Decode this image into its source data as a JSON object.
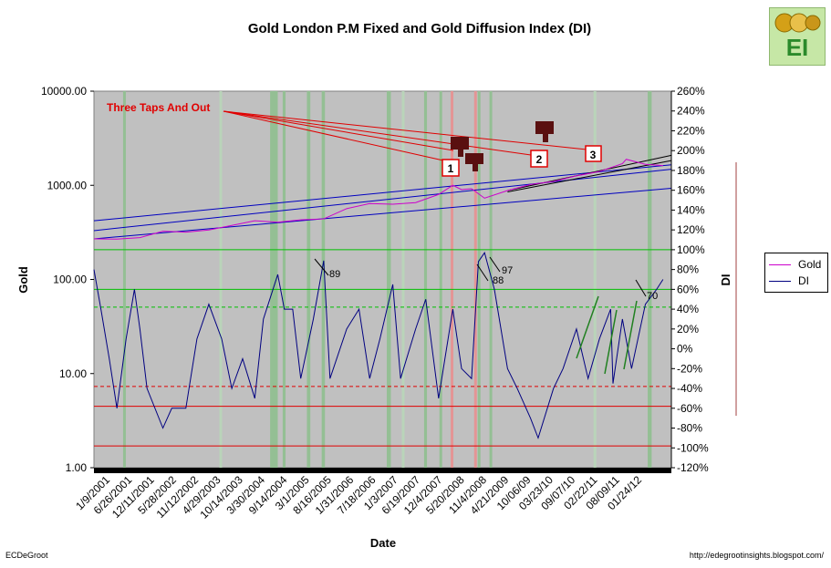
{
  "chart_data": {
    "type": "line",
    "title": "Gold London P.M Fixed and Gold Diffusion Index (DI)",
    "xlabel": "Date",
    "ylabel_left": "Gold",
    "ylabel_right": "DI",
    "y_left_scale": "log",
    "y_left_range": [
      1,
      10000
    ],
    "y_left_ticks": [
      "1.00",
      "10.00",
      "100.00",
      "1000.00",
      "10000.00"
    ],
    "y_right_range": [
      -120,
      260
    ],
    "y_right_ticks": [
      "-120%",
      "-100%",
      "-80%",
      "-60%",
      "-40%",
      "-20%",
      "0%",
      "20%",
      "40%",
      "60%",
      "80%",
      "100%",
      "120%",
      "140%",
      "160%",
      "180%",
      "200%",
      "220%",
      "240%",
      "260%"
    ],
    "x_range": [
      "2001-01-09",
      "2012-08-01"
    ],
    "x_tick_labels": [
      "1/9/2001",
      "6/26/2001",
      "12/11/2001",
      "5/28/2002",
      "11/12/2002",
      "4/29/2003",
      "10/14/2003",
      "3/30/2004",
      "9/14/2004",
      "3/1/2005",
      "8/16/2005",
      "1/31/2006",
      "7/18/2006",
      "1/3/2007",
      "6/19/2007",
      "12/4/2007",
      "5/20/2008",
      "11/4/2008",
      "4/21/2009",
      "10/06/09",
      "03/23/10",
      "09/07/10",
      "02/22/11",
      "08/09/11",
      "01/24/12"
    ],
    "legend": {
      "position": "right",
      "entries": [
        {
          "name": "Gold",
          "color": "#cc00cc"
        },
        {
          "name": "DI",
          "color": "#000080"
        }
      ]
    },
    "series": [
      {
        "name": "Gold",
        "axis": "left",
        "color": "#cc00cc",
        "points": [
          [
            "2001-01-09",
            270
          ],
          [
            "2001-06-26",
            268
          ],
          [
            "2001-12-11",
            278
          ],
          [
            "2002-05-28",
            325
          ],
          [
            "2002-11-12",
            318
          ],
          [
            "2003-04-29",
            335
          ],
          [
            "2003-10-14",
            375
          ],
          [
            "2004-03-30",
            420
          ],
          [
            "2004-09-14",
            405
          ],
          [
            "2005-03-01",
            430
          ],
          [
            "2005-08-16",
            440
          ],
          [
            "2006-01-31",
            565
          ],
          [
            "2006-07-18",
            640
          ],
          [
            "2007-01-03",
            630
          ],
          [
            "2007-06-19",
            655
          ],
          [
            "2007-12-04",
            800
          ],
          [
            "2008-03-17",
            1000
          ],
          [
            "2008-05-20",
            900
          ],
          [
            "2008-08-01",
            920
          ],
          [
            "2008-11-04",
            730
          ],
          [
            "2009-04-21",
            880
          ],
          [
            "2009-10-06",
            1020
          ],
          [
            "2010-03-23",
            1100
          ],
          [
            "2010-09-07",
            1260
          ],
          [
            "2011-02-22",
            1400
          ],
          [
            "2011-08-09",
            1700
          ],
          [
            "2011-09-06",
            1890
          ],
          [
            "2012-01-24",
            1670
          ],
          [
            "2012-06-01",
            1620
          ]
        ]
      },
      {
        "name": "DI",
        "axis": "right",
        "color": "#000080",
        "points": [
          [
            "2001-01-09",
            80
          ],
          [
            "2001-03-01",
            40
          ],
          [
            "2001-05-01",
            -10
          ],
          [
            "2001-06-26",
            -60
          ],
          [
            "2001-09-01",
            10
          ],
          [
            "2001-11-01",
            60
          ],
          [
            "2001-12-11",
            20
          ],
          [
            "2002-02-01",
            -40
          ],
          [
            "2002-05-28",
            -80
          ],
          [
            "2002-08-01",
            -60
          ],
          [
            "2002-11-12",
            -60
          ],
          [
            "2003-02-01",
            10
          ],
          [
            "2003-04-29",
            45
          ],
          [
            "2003-08-01",
            10
          ],
          [
            "2003-10-14",
            -40
          ],
          [
            "2004-01-01",
            -10
          ],
          [
            "2004-03-30",
            -50
          ],
          [
            "2004-06-01",
            30
          ],
          [
            "2004-09-14",
            75
          ],
          [
            "2004-11-01",
            40
          ],
          [
            "2005-01-01",
            40
          ],
          [
            "2005-03-01",
            -30
          ],
          [
            "2005-06-01",
            30
          ],
          [
            "2005-08-16",
            89
          ],
          [
            "2005-10-01",
            -30
          ],
          [
            "2006-01-31",
            20
          ],
          [
            "2006-05-01",
            40
          ],
          [
            "2006-07-18",
            -30
          ],
          [
            "2006-10-01",
            10
          ],
          [
            "2007-01-03",
            65
          ],
          [
            "2007-03-01",
            -30
          ],
          [
            "2007-06-19",
            20
          ],
          [
            "2007-09-01",
            50
          ],
          [
            "2007-12-04",
            -50
          ],
          [
            "2008-03-17",
            40
          ],
          [
            "2008-05-20",
            -20
          ],
          [
            "2008-08-01",
            -30
          ],
          [
            "2008-09-20",
            88
          ],
          [
            "2008-11-04",
            97
          ],
          [
            "2009-01-15",
            60
          ],
          [
            "2009-04-21",
            -20
          ],
          [
            "2009-07-01",
            -40
          ],
          [
            "2009-10-06",
            -70
          ],
          [
            "2009-12-01",
            -90
          ],
          [
            "2010-03-23",
            -40
          ],
          [
            "2010-06-01",
            -20
          ],
          [
            "2010-09-07",
            20
          ],
          [
            "2010-12-01",
            -30
          ],
          [
            "2011-02-22",
            10
          ],
          [
            "2011-05-15",
            40
          ],
          [
            "2011-06-01",
            -35
          ],
          [
            "2011-08-09",
            30
          ],
          [
            "2011-10-15",
            -20
          ],
          [
            "2012-01-24",
            45
          ],
          [
            "2012-04-15",
            60
          ],
          [
            "2012-06-01",
            70
          ]
        ]
      }
    ],
    "annotations": [
      {
        "text": "Three Taps And Out",
        "color": "#e00000"
      },
      {
        "text": "1"
      },
      {
        "text": "2"
      },
      {
        "text": "3"
      },
      {
        "text": "89"
      },
      {
        "text": "88"
      },
      {
        "text": "97"
      },
      {
        "text": "70"
      }
    ]
  },
  "footer": {
    "left": "ECDeGroot",
    "right": "http://edegrootinsights.blogspot.com/"
  },
  "logo": {
    "text": "EI"
  }
}
